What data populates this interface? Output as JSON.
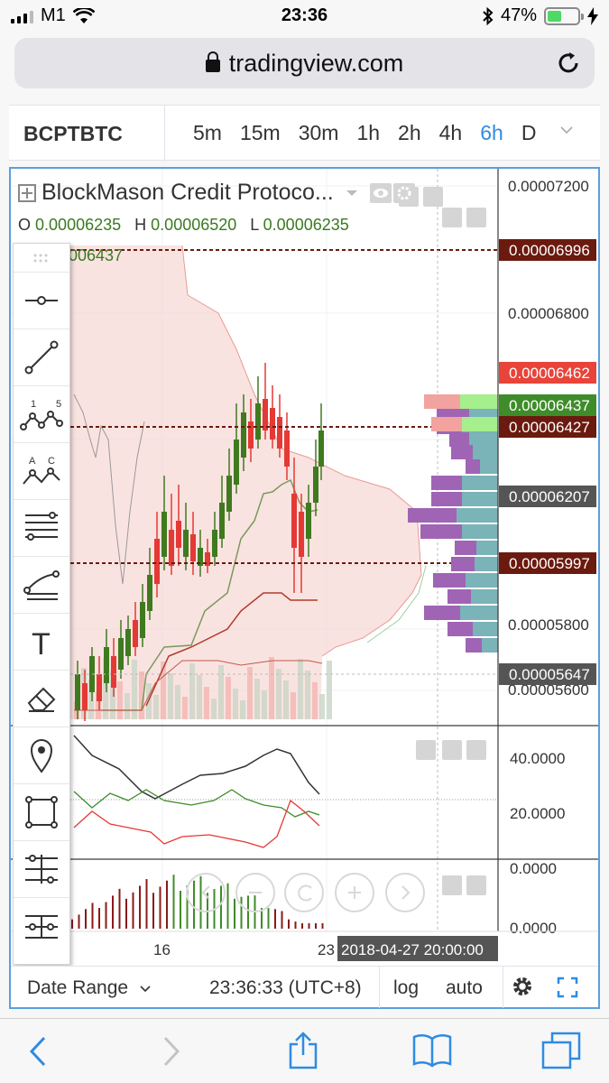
{
  "status_bar": {
    "carrier": "M1",
    "time": "23:36",
    "battery": "47%",
    "battery_level": 0.47
  },
  "browser": {
    "url": "tradingview.com"
  },
  "toolbar": {
    "symbol": "BCPTBTC",
    "intervals": [
      "5m",
      "15m",
      "30m",
      "1h",
      "2h",
      "4h",
      "6h",
      "D"
    ],
    "active_interval": "6h"
  },
  "legend": {
    "title": "BlockMason Credit Protoco...",
    "open_label": "O",
    "open": "0.00006235",
    "high_label": "H",
    "high": "0.00006520",
    "low_label": "L",
    "low": "0.00006235",
    "indicator_value": "006437"
  },
  "price_axis": {
    "ticks": [
      "0.00007200",
      "0.00006800",
      "0.00005800",
      "0.00005600"
    ],
    "labels": [
      {
        "text": "0.00006996",
        "bg": "#6b1a0f"
      },
      {
        "text": "0.00006462",
        "bg": "#e8443a"
      },
      {
        "text": "0.00006437",
        "bg": "#3f8c2a"
      },
      {
        "text": "0.00006427",
        "bg": "#6b1a0f"
      },
      {
        "text": "0.00006207",
        "bg": "#555555"
      },
      {
        "text": "0.00005997",
        "bg": "#6b1a0f"
      },
      {
        "text": "0.00005647",
        "bg": "#555555"
      }
    ]
  },
  "indicator_axis": {
    "ticks": [
      "40.0000",
      "20.0000"
    ]
  },
  "macd_axis": {
    "ticks": [
      "0.0000",
      "0.0000"
    ]
  },
  "time_axis": {
    "ticks": [
      "16",
      "23"
    ],
    "crosshair_label": "2018-04-27 20:00:00"
  },
  "drawing_tools": [
    "horizontal-line-icon",
    "trend-line-icon",
    "xabcd-pattern-icon",
    "abcd-pattern-icon",
    "fib-retracement-icon",
    "pitchfork-icon",
    "text-icon",
    "eraser-icon",
    "pin-icon",
    "rectangle-icon",
    "measure-icon",
    "magnet-icon"
  ],
  "text_tool_glyph": "T",
  "pattern_labels": {
    "xabcd": [
      "1",
      "5"
    ],
    "abcd": [
      "A",
      "C"
    ]
  },
  "bottom_bar": {
    "date_range": "Date Range",
    "clock": "23:36:33 (UTC+8)",
    "log": "log",
    "auto": "auto"
  },
  "colors": {
    "accent": "#2f8be3",
    "up": "#3f7a1f",
    "down": "#e53935",
    "frame": "#5a9fe0"
  }
}
